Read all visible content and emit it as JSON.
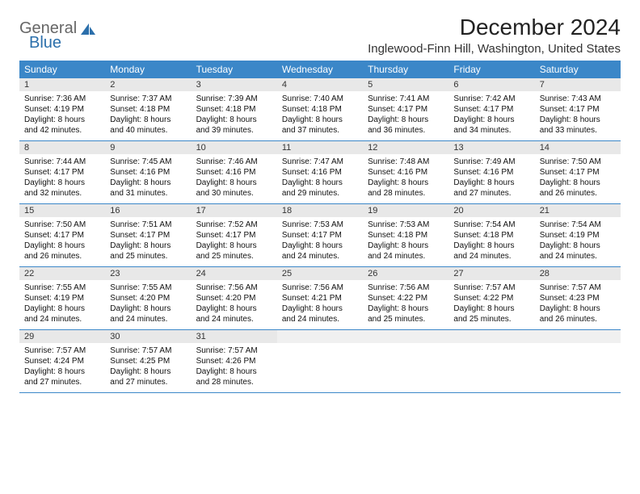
{
  "logo": {
    "text_general": "General",
    "text_blue": "Blue",
    "icon_color": "#2b6fab"
  },
  "title": "December 2024",
  "location": "Inglewood-Finn Hill, Washington, United States",
  "colors": {
    "header_bg": "#3b87c8",
    "header_fg": "#ffffff",
    "daynum_bg": "#e8e8e8",
    "row_border": "#3b87c8",
    "page_bg": "#ffffff"
  },
  "weekdays": [
    "Sunday",
    "Monday",
    "Tuesday",
    "Wednesday",
    "Thursday",
    "Friday",
    "Saturday"
  ],
  "weeks": [
    [
      {
        "n": "1",
        "sr": "7:36 AM",
        "ss": "4:19 PM",
        "dl": "8 hours and 42 minutes."
      },
      {
        "n": "2",
        "sr": "7:37 AM",
        "ss": "4:18 PM",
        "dl": "8 hours and 40 minutes."
      },
      {
        "n": "3",
        "sr": "7:39 AM",
        "ss": "4:18 PM",
        "dl": "8 hours and 39 minutes."
      },
      {
        "n": "4",
        "sr": "7:40 AM",
        "ss": "4:18 PM",
        "dl": "8 hours and 37 minutes."
      },
      {
        "n": "5",
        "sr": "7:41 AM",
        "ss": "4:17 PM",
        "dl": "8 hours and 36 minutes."
      },
      {
        "n": "6",
        "sr": "7:42 AM",
        "ss": "4:17 PM",
        "dl": "8 hours and 34 minutes."
      },
      {
        "n": "7",
        "sr": "7:43 AM",
        "ss": "4:17 PM",
        "dl": "8 hours and 33 minutes."
      }
    ],
    [
      {
        "n": "8",
        "sr": "7:44 AM",
        "ss": "4:17 PM",
        "dl": "8 hours and 32 minutes."
      },
      {
        "n": "9",
        "sr": "7:45 AM",
        "ss": "4:16 PM",
        "dl": "8 hours and 31 minutes."
      },
      {
        "n": "10",
        "sr": "7:46 AM",
        "ss": "4:16 PM",
        "dl": "8 hours and 30 minutes."
      },
      {
        "n": "11",
        "sr": "7:47 AM",
        "ss": "4:16 PM",
        "dl": "8 hours and 29 minutes."
      },
      {
        "n": "12",
        "sr": "7:48 AM",
        "ss": "4:16 PM",
        "dl": "8 hours and 28 minutes."
      },
      {
        "n": "13",
        "sr": "7:49 AM",
        "ss": "4:16 PM",
        "dl": "8 hours and 27 minutes."
      },
      {
        "n": "14",
        "sr": "7:50 AM",
        "ss": "4:17 PM",
        "dl": "8 hours and 26 minutes."
      }
    ],
    [
      {
        "n": "15",
        "sr": "7:50 AM",
        "ss": "4:17 PM",
        "dl": "8 hours and 26 minutes."
      },
      {
        "n": "16",
        "sr": "7:51 AM",
        "ss": "4:17 PM",
        "dl": "8 hours and 25 minutes."
      },
      {
        "n": "17",
        "sr": "7:52 AM",
        "ss": "4:17 PM",
        "dl": "8 hours and 25 minutes."
      },
      {
        "n": "18",
        "sr": "7:53 AM",
        "ss": "4:17 PM",
        "dl": "8 hours and 24 minutes."
      },
      {
        "n": "19",
        "sr": "7:53 AM",
        "ss": "4:18 PM",
        "dl": "8 hours and 24 minutes."
      },
      {
        "n": "20",
        "sr": "7:54 AM",
        "ss": "4:18 PM",
        "dl": "8 hours and 24 minutes."
      },
      {
        "n": "21",
        "sr": "7:54 AM",
        "ss": "4:19 PM",
        "dl": "8 hours and 24 minutes."
      }
    ],
    [
      {
        "n": "22",
        "sr": "7:55 AM",
        "ss": "4:19 PM",
        "dl": "8 hours and 24 minutes."
      },
      {
        "n": "23",
        "sr": "7:55 AM",
        "ss": "4:20 PM",
        "dl": "8 hours and 24 minutes."
      },
      {
        "n": "24",
        "sr": "7:56 AM",
        "ss": "4:20 PM",
        "dl": "8 hours and 24 minutes."
      },
      {
        "n": "25",
        "sr": "7:56 AM",
        "ss": "4:21 PM",
        "dl": "8 hours and 24 minutes."
      },
      {
        "n": "26",
        "sr": "7:56 AM",
        "ss": "4:22 PM",
        "dl": "8 hours and 25 minutes."
      },
      {
        "n": "27",
        "sr": "7:57 AM",
        "ss": "4:22 PM",
        "dl": "8 hours and 25 minutes."
      },
      {
        "n": "28",
        "sr": "7:57 AM",
        "ss": "4:23 PM",
        "dl": "8 hours and 26 minutes."
      }
    ],
    [
      {
        "n": "29",
        "sr": "7:57 AM",
        "ss": "4:24 PM",
        "dl": "8 hours and 27 minutes."
      },
      {
        "n": "30",
        "sr": "7:57 AM",
        "ss": "4:25 PM",
        "dl": "8 hours and 27 minutes."
      },
      {
        "n": "31",
        "sr": "7:57 AM",
        "ss": "4:26 PM",
        "dl": "8 hours and 28 minutes."
      },
      null,
      null,
      null,
      null
    ]
  ],
  "labels": {
    "sunrise": "Sunrise:",
    "sunset": "Sunset:",
    "daylight": "Daylight:"
  }
}
